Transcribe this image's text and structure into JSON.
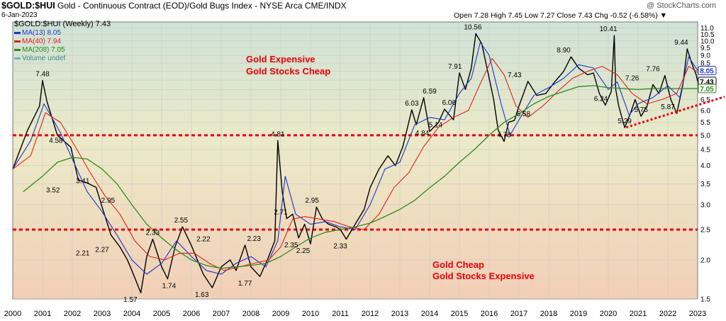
{
  "header": {
    "symbol": "$GOLD:$HUI",
    "description": "Gold - Continuous Contract (EOD)/Gold Bugs Index - NYSE Arca CME/INDX",
    "date": "6-Jan-2023",
    "ohlc": "Open 7.28  High 7.45  Low 7.27  Close 7.43  Chg -0.52 (-6.58%) ▼",
    "brand": "@ StockCharts.com"
  },
  "legend": {
    "main": "$GOLD:$HUI (Weekly) 7.43",
    "ma13": "MA(13) 8.05",
    "ma40": "MA(40) 7.94",
    "ma208": "MA(208) 7.05",
    "volume": "Volume undef"
  },
  "annotations": {
    "expensive_1": "Gold Expensive",
    "expensive_2": "Gold Stocks Cheap",
    "cheap_1": "Gold Cheap",
    "cheap_2": "Gold Stocks Expensive"
  },
  "colors": {
    "price": "#000000",
    "ma13": "#1f35c8",
    "ma40": "#e0231b",
    "ma208": "#2e8a1e",
    "ref_lines": "#e8000b",
    "trend_line": "#e8000b",
    "bg_top": "#cfe3d6",
    "bg_bottom": "#f2cfb6"
  },
  "chart_data": {
    "type": "line",
    "scale": "log",
    "ylim": [
      1.5,
      11.5
    ],
    "x_range": [
      2000,
      2023
    ],
    "x_ticks": [
      "2000",
      "2001",
      "2002",
      "2003",
      "2004",
      "2005",
      "2006",
      "2007",
      "2008",
      "2009",
      "2010",
      "2011",
      "2012",
      "2013",
      "2014",
      "2015",
      "2016",
      "2017",
      "2018",
      "2019",
      "2020",
      "2021",
      "2022",
      "2023"
    ],
    "y_ticks": [
      "1.5",
      "2.0",
      "2.5",
      "3.0",
      "3.5",
      "4.0",
      "4.5",
      "5.0",
      "5.5",
      "6.0",
      "6.5",
      "7.0",
      "7.5",
      "8.0",
      "8.5",
      "9.0",
      "9.5",
      "10.0",
      "10.5",
      "11.0"
    ],
    "reference_lines": [
      5.0,
      2.5
    ],
    "trend_line": {
      "start": [
        2020.6,
        5.3
      ],
      "end": [
        2023.0,
        6.3
      ]
    },
    "last_values": {
      "price": "7.43",
      "ma13": "8.05",
      "ma40": "7.94",
      "ma208": "7.05"
    },
    "series": [
      {
        "name": "$GOLD:$HUI (Weekly)",
        "x": [
          2000.0,
          2000.5,
          2000.9,
          2001.0,
          2001.15,
          2001.5,
          2001.95,
          2002.2,
          2002.5,
          2002.8,
          2003.0,
          2003.3,
          2003.6,
          2003.85,
          2004.0,
          2004.3,
          2004.5,
          2004.7,
          2005.0,
          2005.2,
          2005.45,
          2005.7,
          2006.0,
          2006.2,
          2006.4,
          2006.7,
          2007.0,
          2007.3,
          2007.5,
          2007.8,
          2008.0,
          2008.3,
          2008.55,
          2008.8,
          2008.9,
          2009.05,
          2009.2,
          2009.4,
          2009.6,
          2009.8,
          2010.0,
          2010.2,
          2010.4,
          2010.6,
          2010.85,
          2011.0,
          2011.2,
          2011.5,
          2011.8,
          2012.0,
          2012.3,
          2012.6,
          2012.85,
          2013.1,
          2013.4,
          2013.55,
          2013.8,
          2014.0,
          2014.3,
          2014.5,
          2014.8,
          2015.0,
          2015.2,
          2015.4,
          2015.55,
          2015.75,
          2015.95,
          2016.15,
          2016.3,
          2016.5,
          2016.65,
          2016.85,
          2017.0,
          2017.3,
          2017.6,
          2017.9,
          2018.2,
          2018.5,
          2018.75,
          2019.0,
          2019.3,
          2019.5,
          2019.7,
          2019.9,
          2020.1,
          2020.2,
          2020.25,
          2020.35,
          2020.55,
          2020.75,
          2020.9,
          2021.1,
          2021.3,
          2021.5,
          2021.7,
          2021.9,
          2022.1,
          2022.3,
          2022.5,
          2022.65,
          2022.8,
          2022.95,
          2023.0
        ],
        "values": [
          3.9,
          5.2,
          6.2,
          7.48,
          6.4,
          5.0,
          4.58,
          3.6,
          3.52,
          3.41,
          2.95,
          2.4,
          2.2,
          2.0,
          1.85,
          1.57,
          2.05,
          2.33,
          1.9,
          1.74,
          2.2,
          2.55,
          2.22,
          2.0,
          1.8,
          1.63,
          1.9,
          2.0,
          1.85,
          2.23,
          1.9,
          1.77,
          2.0,
          2.3,
          4.81,
          3.3,
          2.71,
          2.8,
          2.35,
          2.6,
          2.25,
          2.95,
          2.7,
          2.6,
          2.55,
          2.5,
          2.33,
          2.6,
          2.9,
          3.4,
          3.9,
          4.3,
          4.0,
          4.6,
          6.03,
          5.4,
          6.59,
          5.14,
          5.5,
          6.06,
          5.6,
          7.91,
          7.0,
          8.2,
          10.56,
          9.8,
          8.0,
          6.5,
          5.2,
          4.78,
          5.5,
          5.58,
          6.2,
          7.43,
          6.7,
          6.8,
          7.4,
          8.0,
          8.9,
          8.2,
          7.8,
          7.9,
          6.8,
          6.24,
          6.9,
          10.41,
          7.0,
          6.2,
          5.29,
          5.9,
          6.5,
          5.75,
          6.2,
          7.26,
          6.8,
          7.76,
          6.5,
          5.87,
          7.2,
          9.44,
          8.5,
          7.8,
          7.43
        ]
      },
      {
        "name": "MA(13)",
        "x": [
          2000.0,
          2000.6,
          2001.05,
          2001.6,
          2002.0,
          2002.5,
          2003.0,
          2003.5,
          2004.0,
          2004.5,
          2005.0,
          2005.5,
          2006.0,
          2006.5,
          2007.0,
          2007.5,
          2008.0,
          2008.5,
          2008.9,
          2009.15,
          2009.5,
          2010.0,
          2010.5,
          2011.0,
          2011.5,
          2012.0,
          2012.5,
          2013.0,
          2013.5,
          2014.0,
          2014.5,
          2015.0,
          2015.4,
          2015.7,
          2016.0,
          2016.4,
          2016.7,
          2017.0,
          2017.5,
          2018.0,
          2018.5,
          2019.0,
          2019.5,
          2020.0,
          2020.3,
          2020.7,
          2021.0,
          2021.5,
          2022.0,
          2022.4,
          2022.7,
          2023.0
        ],
        "values": [
          3.9,
          4.8,
          6.3,
          5.1,
          4.2,
          3.3,
          2.85,
          2.4,
          2.0,
          1.8,
          1.95,
          2.3,
          2.05,
          1.85,
          1.8,
          1.95,
          2.05,
          1.9,
          2.3,
          3.7,
          2.8,
          2.6,
          2.65,
          2.55,
          2.5,
          3.0,
          3.9,
          4.1,
          5.4,
          5.7,
          5.6,
          6.8,
          7.6,
          9.9,
          9.0,
          6.3,
          5.0,
          5.6,
          6.7,
          7.1,
          7.6,
          8.4,
          8.2,
          7.0,
          7.4,
          5.8,
          6.3,
          6.6,
          7.2,
          6.6,
          8.9,
          8.05
        ]
      },
      {
        "name": "MA(40)",
        "x": [
          2000.0,
          2000.6,
          2001.1,
          2001.6,
          2002.1,
          2002.6,
          2003.1,
          2003.6,
          2004.1,
          2004.6,
          2005.1,
          2005.6,
          2006.1,
          2006.6,
          2007.1,
          2007.6,
          2008.1,
          2008.6,
          2009.0,
          2009.4,
          2009.8,
          2010.3,
          2010.8,
          2011.3,
          2011.8,
          2012.3,
          2012.8,
          2013.3,
          2013.8,
          2014.3,
          2014.8,
          2015.3,
          2015.7,
          2016.1,
          2016.5,
          2016.9,
          2017.3,
          2017.8,
          2018.3,
          2018.8,
          2019.3,
          2019.8,
          2020.3,
          2020.8,
          2021.3,
          2021.8,
          2022.3,
          2022.7,
          2023.0
        ],
        "values": [
          3.9,
          4.3,
          5.9,
          5.5,
          4.6,
          3.8,
          3.2,
          2.8,
          2.3,
          2.05,
          2.0,
          2.1,
          2.1,
          1.95,
          1.85,
          1.9,
          1.95,
          2.0,
          2.2,
          2.7,
          2.75,
          2.7,
          2.65,
          2.55,
          2.5,
          2.8,
          3.4,
          3.8,
          4.6,
          5.3,
          5.7,
          6.0,
          7.3,
          8.8,
          7.8,
          6.2,
          5.7,
          6.2,
          6.9,
          7.6,
          8.0,
          8.3,
          7.8,
          6.8,
          6.3,
          6.5,
          6.8,
          8.3,
          7.94
        ]
      },
      {
        "name": "MA(208)",
        "x": [
          2000.35,
          2001.0,
          2001.5,
          2002.0,
          2002.5,
          2003.0,
          2003.5,
          2004.0,
          2004.5,
          2005.0,
          2005.5,
          2006.0,
          2006.5,
          2007.0,
          2007.5,
          2008.0,
          2008.5,
          2009.0,
          2009.5,
          2010.0,
          2010.5,
          2011.0,
          2011.5,
          2012.0,
          2012.5,
          2013.0,
          2013.5,
          2014.0,
          2014.5,
          2015.0,
          2015.5,
          2016.0,
          2016.5,
          2017.0,
          2017.5,
          2018.0,
          2018.5,
          2019.0,
          2019.5,
          2020.0,
          2020.5,
          2021.0,
          2021.5,
          2022.0,
          2022.5,
          2023.0
        ],
        "values": [
          3.3,
          3.7,
          4.1,
          4.25,
          4.2,
          3.9,
          3.5,
          3.0,
          2.6,
          2.35,
          2.15,
          2.0,
          1.92,
          1.88,
          1.9,
          1.92,
          1.95,
          2.05,
          2.2,
          2.35,
          2.45,
          2.5,
          2.55,
          2.62,
          2.75,
          2.9,
          3.1,
          3.4,
          3.7,
          4.1,
          4.5,
          5.0,
          5.5,
          5.85,
          6.3,
          6.65,
          6.9,
          7.15,
          7.2,
          7.1,
          7.05,
          7.0,
          7.05,
          7.05,
          7.05,
          7.05
        ]
      }
    ],
    "point_labels": [
      {
        "x": 2001.0,
        "y": 7.48,
        "text": "7.48"
      },
      {
        "x": 2001.45,
        "y": 4.58,
        "text": "4.58"
      },
      {
        "x": 2001.35,
        "y": 3.52,
        "text": "3.52"
      },
      {
        "x": 2002.35,
        "y": 3.41,
        "text": "3.41"
      },
      {
        "x": 2003.2,
        "y": 2.95,
        "text": "2.95"
      },
      {
        "x": 2002.35,
        "y": 2.21,
        "text": "2.21"
      },
      {
        "x": 2003.0,
        "y": 2.27,
        "text": "2.27"
      },
      {
        "x": 2004.7,
        "y": 2.33,
        "text": "2.33"
      },
      {
        "x": 2005.65,
        "y": 2.55,
        "text": "2.55"
      },
      {
        "x": 2005.25,
        "y": 1.74,
        "text": "1.74"
      },
      {
        "x": 2003.95,
        "y": 1.57,
        "text": "1.57"
      },
      {
        "x": 2006.4,
        "y": 2.22,
        "text": "2.22"
      },
      {
        "x": 2008.1,
        "y": 2.23,
        "text": "2.23"
      },
      {
        "x": 2006.35,
        "y": 1.63,
        "text": "1.63"
      },
      {
        "x": 2007.8,
        "y": 1.77,
        "text": "1.77"
      },
      {
        "x": 2008.9,
        "y": 4.81,
        "text": "4.81"
      },
      {
        "x": 2009.0,
        "y": 2.71,
        "text": "2.71"
      },
      {
        "x": 2010.05,
        "y": 2.95,
        "text": "2.95"
      },
      {
        "x": 2009.35,
        "y": 2.35,
        "text": "2.35"
      },
      {
        "x": 2009.75,
        "y": 2.25,
        "text": "2.25"
      },
      {
        "x": 2011.0,
        "y": 2.33,
        "text": "2.33"
      },
      {
        "x": 2013.4,
        "y": 6.03,
        "text": "6.03"
      },
      {
        "x": 2014.0,
        "y": 6.59,
        "text": "6.59"
      },
      {
        "x": 2013.75,
        "y": 4.84,
        "text": "4.84"
      },
      {
        "x": 2014.2,
        "y": 5.14,
        "text": "5.14"
      },
      {
        "x": 2014.65,
        "y": 6.06,
        "text": "6.06"
      },
      {
        "x": 2014.85,
        "y": 7.91,
        "text": "7.91"
      },
      {
        "x": 2015.45,
        "y": 10.56,
        "text": "10.56"
      },
      {
        "x": 2016.5,
        "y": 4.78,
        "text": "4.78"
      },
      {
        "x": 2016.85,
        "y": 7.43,
        "text": "7.43"
      },
      {
        "x": 2017.15,
        "y": 5.58,
        "text": "5.58"
      },
      {
        "x": 2018.5,
        "y": 8.9,
        "text": "8.90"
      },
      {
        "x": 2020.0,
        "y": 10.41,
        "text": "10.41"
      },
      {
        "x": 2019.75,
        "y": 6.24,
        "text": "6.24"
      },
      {
        "x": 2020.55,
        "y": 5.29,
        "text": "5.29"
      },
      {
        "x": 2020.8,
        "y": 7.26,
        "text": "7.26"
      },
      {
        "x": 2021.1,
        "y": 5.75,
        "text": "5.75"
      },
      {
        "x": 2021.5,
        "y": 7.76,
        "text": "7.76"
      },
      {
        "x": 2022.0,
        "y": 5.87,
        "text": "5.87"
      },
      {
        "x": 2022.45,
        "y": 9.44,
        "text": "9.44"
      }
    ]
  }
}
